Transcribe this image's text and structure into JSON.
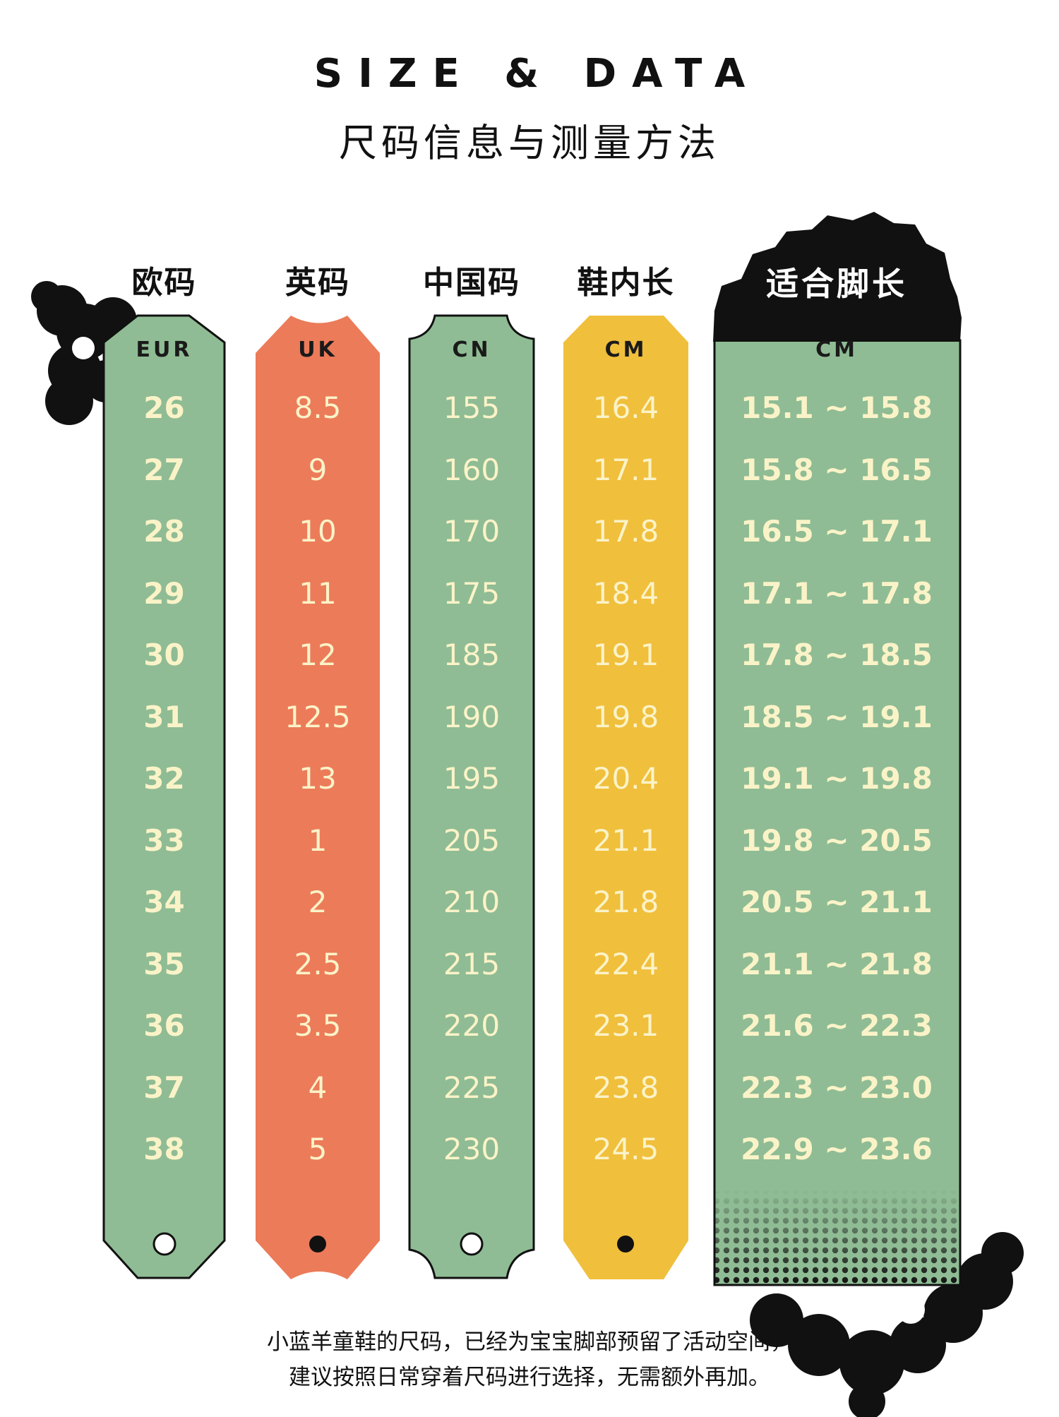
{
  "title": {
    "en": "SIZE & DATA",
    "cn": "尺码信息与测量方法"
  },
  "columns": [
    {
      "key": "eur",
      "header": "欧码",
      "unit": "EUR",
      "color": "#8fbc94",
      "values": [
        "26",
        "27",
        "28",
        "29",
        "30",
        "31",
        "32",
        "33",
        "34",
        "35",
        "36",
        "37",
        "38"
      ]
    },
    {
      "key": "uk",
      "header": "英码",
      "unit": "UK",
      "color": "#ec7b59",
      "values": [
        "8.5",
        "9",
        "10",
        "11",
        "12",
        "12.5",
        "13",
        "1",
        "2",
        "2.5",
        "3.5",
        "4",
        "5"
      ]
    },
    {
      "key": "cn",
      "header": "中国码",
      "unit": "CN",
      "color": "#8fbc94",
      "values": [
        "155",
        "160",
        "170",
        "175",
        "185",
        "190",
        "195",
        "205",
        "210",
        "215",
        "220",
        "225",
        "230"
      ]
    },
    {
      "key": "cm",
      "header": "鞋内长",
      "unit": "CM",
      "color": "#f0bf3c",
      "values": [
        "16.4",
        "17.1",
        "17.8",
        "18.4",
        "19.1",
        "19.8",
        "20.4",
        "21.1",
        "21.8",
        "22.4",
        "23.1",
        "23.8",
        "24.5"
      ]
    },
    {
      "key": "foot",
      "header": "适合脚长",
      "unit": "CM",
      "color": "#8fbc94",
      "values": [
        "15.1 ~ 15.8",
        "15.8 ~ 16.5",
        "16.5 ~ 17.1",
        "17.1 ~ 17.8",
        "17.8 ~ 18.5",
        "18.5 ~ 19.1",
        "19.1 ~ 19.8",
        "19.8 ~ 20.5",
        "20.5 ~ 21.1",
        "21.1 ~ 21.8",
        "21.6 ~ 22.3",
        "22.3 ~ 23.0",
        "22.9 ~ 23.6"
      ]
    }
  ],
  "footnote": {
    "line1": "小蓝羊童鞋的尺码，已经为宝宝脚部预留了活动空间，",
    "line2": "建议按照日常穿着尺码进行选择，无需额外再加。"
  },
  "colors": {
    "text_cream": "#fbf3c8",
    "black": "#111111"
  }
}
